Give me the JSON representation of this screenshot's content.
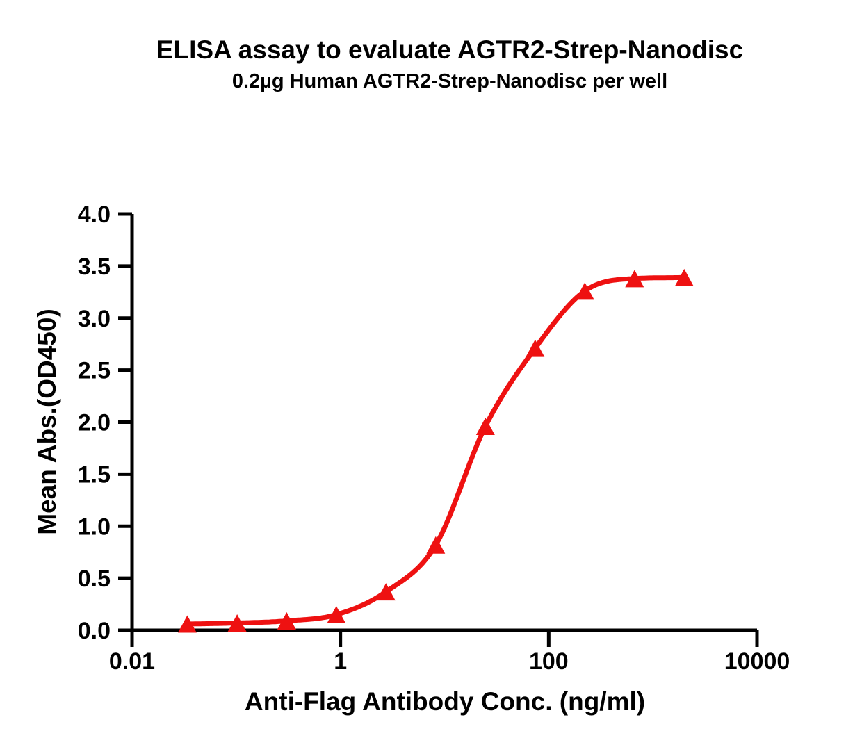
{
  "chart_data": {
    "type": "line",
    "title": "ELISA assay to evaluate AGTR2-Strep-Nanodisc",
    "subtitle": "0.2µg Human AGTR2-Strep-Nanodisc per well",
    "xlabel": "Anti-Flag Antibody Conc. (ng/ml)",
    "ylabel": "Mean Abs.(OD450)",
    "x_scale": "log10",
    "xlim": [
      0.01,
      10000
    ],
    "ylim": [
      0.0,
      4.0
    ],
    "grid": false,
    "legend": "none",
    "background_color": "#ffffff",
    "axis_color": "#000000",
    "x_ticks": [
      {
        "value": 0.01,
        "label": "0.01"
      },
      {
        "value": 1,
        "label": "1"
      },
      {
        "value": 100,
        "label": "100"
      },
      {
        "value": 10000,
        "label": "10000"
      }
    ],
    "y_ticks": [
      {
        "value": 0.0,
        "label": "0.0"
      },
      {
        "value": 0.5,
        "label": "0.5"
      },
      {
        "value": 1.0,
        "label": "1.0"
      },
      {
        "value": 1.5,
        "label": "1.5"
      },
      {
        "value": 2.0,
        "label": "2.0"
      },
      {
        "value": 2.5,
        "label": "2.5"
      },
      {
        "value": 3.0,
        "label": "3.0"
      },
      {
        "value": 3.5,
        "label": "3.5"
      },
      {
        "value": 4.0,
        "label": "4.0"
      }
    ],
    "series": [
      {
        "color": "#ee1111",
        "marker": "triangle-up",
        "curve_style": "sigmoid-fit",
        "points": [
          {
            "x": 0.0339,
            "y": 0.06
          },
          {
            "x": 0.102,
            "y": 0.07
          },
          {
            "x": 0.305,
            "y": 0.09
          },
          {
            "x": 0.914,
            "y": 0.15
          },
          {
            "x": 2.74,
            "y": 0.37
          },
          {
            "x": 8.23,
            "y": 0.82
          },
          {
            "x": 24.7,
            "y": 1.96
          },
          {
            "x": 74.1,
            "y": 2.71
          },
          {
            "x": 222.2,
            "y": 3.26
          },
          {
            "x": 666.7,
            "y": 3.38
          },
          {
            "x": 2000,
            "y": 3.39
          }
        ]
      }
    ]
  }
}
